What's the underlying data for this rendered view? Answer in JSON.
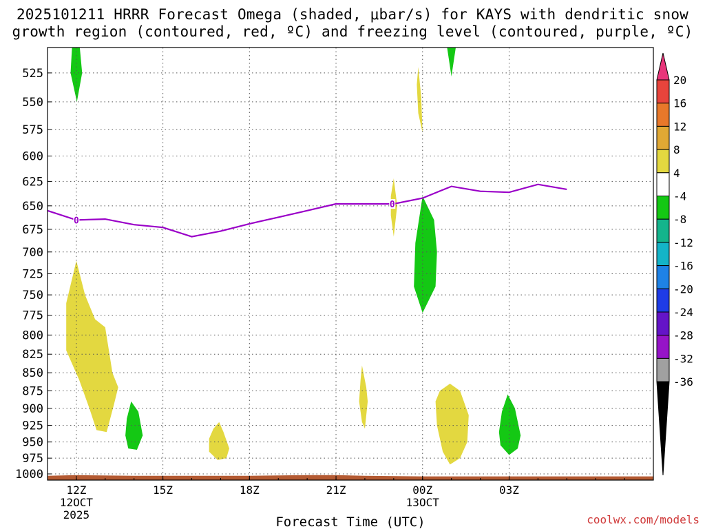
{
  "chart_data": {
    "type": "heatmap",
    "title_line1": "2025101211 HRRR Forecast Omega (shaded, μbar/s) for KAYS with dendritic snow",
    "title_line2": "growth region (contoured, red, ºC) and freezing level (contoured, purple, ºC)",
    "xlabel": "Forecast Time (UTC)",
    "ylabel": "",
    "credit": "coolwx.com/models",
    "x_hours_since_12z": [
      -1,
      20
    ],
    "ylim_hpa": [
      1010,
      504
    ],
    "pressure_ticks": [
      525,
      550,
      575,
      600,
      625,
      650,
      675,
      700,
      725,
      750,
      775,
      800,
      825,
      850,
      875,
      900,
      925,
      950,
      975,
      1000
    ],
    "time_ticks": [
      {
        "hour": 0,
        "label": "12Z",
        "sub1": "12OCT",
        "sub2": "2025"
      },
      {
        "hour": 3,
        "label": "15Z",
        "sub1": "",
        "sub2": ""
      },
      {
        "hour": 6,
        "label": "18Z",
        "sub1": "",
        "sub2": ""
      },
      {
        "hour": 9,
        "label": "21Z",
        "sub1": "",
        "sub2": ""
      },
      {
        "hour": 12,
        "label": "00Z",
        "sub1": "13OCT",
        "sub2": ""
      },
      {
        "hour": 15,
        "label": "03Z",
        "sub1": "",
        "sub2": ""
      }
    ],
    "colorbar": {
      "labels": [
        "20",
        "16",
        "12",
        "8",
        "4",
        "-4",
        "-8",
        "-12",
        "-16",
        "-20",
        "-24",
        "-28",
        "-32",
        "-36"
      ],
      "colors": [
        "#e8357a",
        "#e8443c",
        "#e8782a",
        "#e0a834",
        "#e3d840",
        "#ffffff",
        "#14c814",
        "#14b48c",
        "#14b4c8",
        "#1e82e6",
        "#1e3ce6",
        "#6414c8",
        "#9614c8",
        "#a0a0a0",
        "#000000"
      ]
    },
    "freezing_level": {
      "contour_label": "0",
      "color": "#9a00c8",
      "points": [
        [
          -1,
          655
        ],
        [
          0,
          665
        ],
        [
          1,
          664
        ],
        [
          2,
          670
        ],
        [
          3,
          673
        ],
        [
          4,
          683
        ],
        [
          5,
          677
        ],
        [
          6,
          669
        ],
        [
          7,
          662
        ],
        [
          8,
          655
        ],
        [
          9,
          648
        ],
        [
          10,
          648
        ],
        [
          11,
          648
        ],
        [
          12,
          642
        ],
        [
          13,
          630
        ],
        [
          14,
          635
        ],
        [
          15,
          636
        ],
        [
          16,
          628
        ],
        [
          17,
          633
        ]
      ]
    },
    "omega_regions": [
      {
        "name": "upward-8",
        "color": "#14c814",
        "polygon": [
          [
            -0.15,
            504
          ],
          [
            0.12,
            504
          ],
          [
            0.2,
            525
          ],
          [
            0.02,
            550
          ],
          [
            -0.2,
            525
          ]
        ]
      },
      {
        "name": "upward-8",
        "color": "#14c814",
        "polygon": [
          [
            12.85,
            504
          ],
          [
            13.15,
            504
          ],
          [
            13.0,
            528
          ]
        ]
      },
      {
        "name": "upward-8",
        "color": "#14c814",
        "polygon": [
          [
            12.0,
            640
          ],
          [
            12.4,
            665
          ],
          [
            12.5,
            700
          ],
          [
            12.45,
            740
          ],
          [
            12.0,
            772
          ],
          [
            11.7,
            740
          ],
          [
            11.75,
            690
          ]
        ]
      },
      {
        "name": "upward-8",
        "color": "#14c814",
        "polygon": [
          [
            1.9,
            890
          ],
          [
            2.15,
            905
          ],
          [
            2.3,
            940
          ],
          [
            2.1,
            962
          ],
          [
            1.8,
            960
          ],
          [
            1.7,
            940
          ],
          [
            1.75,
            915
          ]
        ]
      },
      {
        "name": "upward-8",
        "color": "#14c814",
        "polygon": [
          [
            14.95,
            880
          ],
          [
            15.2,
            900
          ],
          [
            15.4,
            940
          ],
          [
            15.3,
            960
          ],
          [
            15.0,
            970
          ],
          [
            14.7,
            955
          ],
          [
            14.65,
            935
          ],
          [
            14.75,
            905
          ]
        ]
      },
      {
        "name": "downward-4",
        "color": "#e3d840",
        "polygon": [
          [
            0.0,
            710
          ],
          [
            0.3,
            750
          ],
          [
            0.65,
            780
          ],
          [
            1.0,
            790
          ],
          [
            1.25,
            850
          ],
          [
            1.45,
            870
          ],
          [
            1.3,
            895
          ],
          [
            1.05,
            935
          ],
          [
            0.7,
            932
          ],
          [
            0.45,
            900
          ],
          [
            0.1,
            860
          ],
          [
            -0.35,
            820
          ],
          [
            -0.35,
            760
          ]
        ]
      },
      {
        "name": "downward-4",
        "color": "#e3d840",
        "polygon": [
          [
            11.85,
            520
          ],
          [
            11.95,
            545
          ],
          [
            12.0,
            578
          ],
          [
            11.85,
            560
          ],
          [
            11.8,
            535
          ]
        ]
      },
      {
        "name": "downward-4",
        "color": "#e3d840",
        "polygon": [
          [
            11.0,
            622
          ],
          [
            11.12,
            650
          ],
          [
            11.0,
            683
          ],
          [
            10.9,
            660
          ],
          [
            10.9,
            640
          ]
        ]
      },
      {
        "name": "downward-4",
        "color": "#e3d840",
        "polygon": [
          [
            9.9,
            840
          ],
          [
            10.05,
            870
          ],
          [
            10.1,
            890
          ],
          [
            10.0,
            930
          ],
          [
            9.9,
            920
          ],
          [
            9.8,
            890
          ],
          [
            9.85,
            860
          ]
        ]
      },
      {
        "name": "downward-4",
        "color": "#e3d840",
        "polygon": [
          [
            12.95,
            865
          ],
          [
            13.3,
            875
          ],
          [
            13.6,
            910
          ],
          [
            13.55,
            950
          ],
          [
            13.3,
            975
          ],
          [
            12.95,
            985
          ],
          [
            12.7,
            965
          ],
          [
            12.5,
            925
          ],
          [
            12.45,
            890
          ],
          [
            12.6,
            875
          ]
        ]
      },
      {
        "name": "downward-4",
        "color": "#e3d840",
        "polygon": [
          [
            4.95,
            920
          ],
          [
            5.1,
            935
          ],
          [
            5.3,
            960
          ],
          [
            5.2,
            975
          ],
          [
            4.9,
            978
          ],
          [
            4.6,
            965
          ],
          [
            4.6,
            945
          ],
          [
            4.75,
            930
          ]
        ]
      }
    ],
    "terrain_color": "#b45a32",
    "terrain_top_hpa": [
      [
        -1,
        1003
      ],
      [
        0,
        1002
      ],
      [
        2,
        1003
      ],
      [
        6,
        1003
      ],
      [
        8,
        1002
      ],
      [
        9,
        1002
      ],
      [
        10,
        1003
      ],
      [
        12,
        1004
      ],
      [
        20,
        1004
      ]
    ]
  }
}
